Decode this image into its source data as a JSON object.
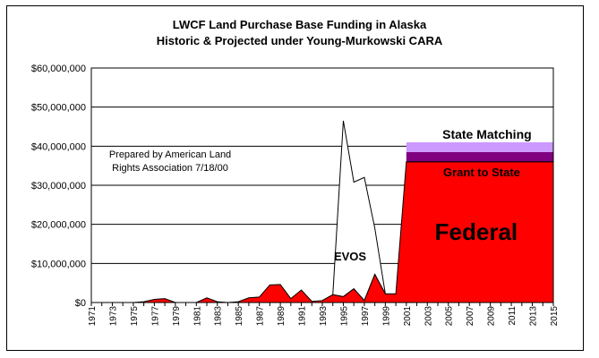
{
  "chart_data": {
    "type": "area",
    "title": [
      "LWCF Land Purchase Base Funding in Alaska",
      "Historic & Projected under Young-Murkowski CARA"
    ],
    "note": [
      "Prepared by American Land",
      "Rights Association 7/18/00"
    ],
    "y_ticks": [
      "$0",
      "$10,000,000",
      "$20,000,000",
      "$30,000,000",
      "$40,000,000",
      "$50,000,000",
      "$60,000,000"
    ],
    "ylim": [
      0,
      60000000
    ],
    "x_ticks": [
      "1971",
      "1973",
      "1975",
      "1977",
      "1979",
      "1981",
      "1983",
      "1985",
      "1987",
      "1989",
      "1991",
      "1993",
      "1995",
      "1997",
      "1999",
      "2001",
      "2003",
      "2005",
      "2007",
      "2009",
      "2011",
      "2013",
      "2015"
    ],
    "grid": true,
    "series": [
      {
        "name": "Federal",
        "color": "#ff0000",
        "x": [
          1971,
          1972,
          1973,
          1974,
          1975,
          1976,
          1977,
          1978,
          1979,
          1980,
          1981,
          1982,
          1983,
          1984,
          1985,
          1986,
          1987,
          1988,
          1989,
          1990,
          1991,
          1992,
          1993,
          1994,
          1995,
          1996,
          1997,
          1998,
          1999,
          2000,
          2001,
          2015
        ],
        "values": [
          0,
          0,
          0,
          0,
          0,
          200000,
          800000,
          1000000,
          0,
          0,
          0,
          1200000,
          200000,
          0,
          200000,
          1200000,
          1400000,
          4500000,
          4600000,
          1000000,
          3200000,
          300000,
          500000,
          2000000,
          1500000,
          3500000,
          500000,
          7200000,
          2200000,
          2200000,
          36000000,
          36000000
        ]
      },
      {
        "name": "Grant to State",
        "color": "#800080",
        "x": [
          2001,
          2015
        ],
        "values": [
          2500000,
          2500000
        ]
      },
      {
        "name": "State Matching",
        "color": "#cc99ff",
        "x": [
          2001,
          2015
        ],
        "values": [
          2500000,
          2500000
        ]
      },
      {
        "name": "EVOS",
        "color": "#ffffff",
        "x": [
          1993,
          1994,
          1995,
          1996,
          1997,
          1998,
          1999,
          2000
        ],
        "values": [
          500000,
          2000000,
          46500000,
          30800000,
          32000000,
          19000000,
          2200000,
          2200000
        ]
      }
    ]
  }
}
